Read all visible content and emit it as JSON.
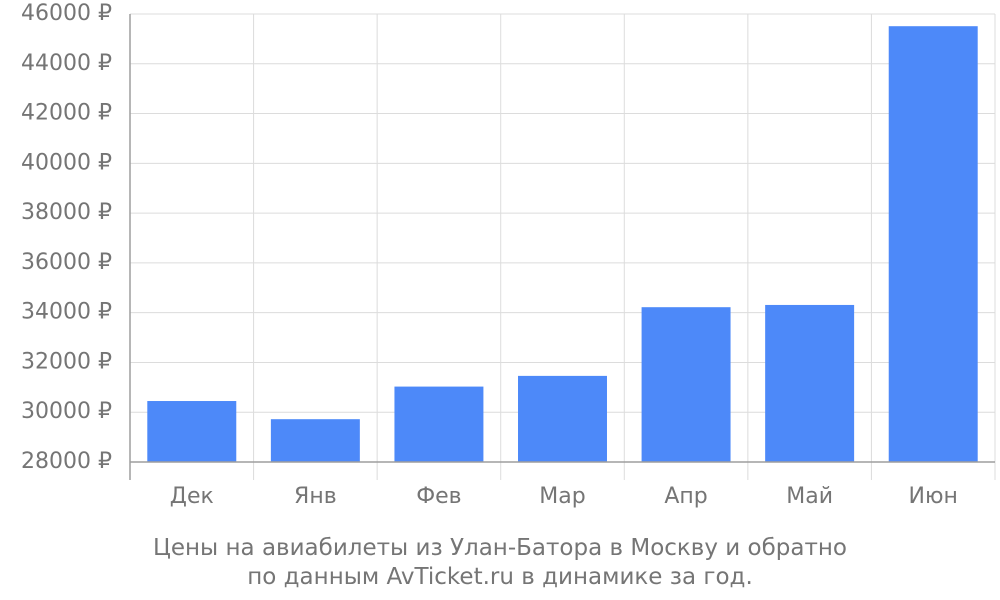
{
  "chart_data": {
    "type": "bar",
    "categories": [
      "Дек",
      "Янв",
      "Фев",
      "Мар",
      "Апр",
      "Май",
      "Июн"
    ],
    "values": [
      30450,
      29720,
      31030,
      31460,
      34220,
      34310,
      45510
    ],
    "ylim": [
      28000,
      46000
    ],
    "yticks": [
      28000,
      30000,
      32000,
      34000,
      36000,
      38000,
      40000,
      42000,
      44000,
      46000
    ],
    "currency_suffix": " ₽",
    "bar_color": "#4d89f9",
    "grid": true,
    "caption": [
      "Цены на авиабилеты из Улан-Батора в Москву и обратно",
      "по данным AvTicket.ru в динамике за год."
    ]
  }
}
